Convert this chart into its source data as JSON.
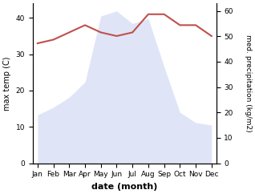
{
  "months": [
    "Jan",
    "Feb",
    "Mar",
    "Apr",
    "May",
    "Jun",
    "Jul",
    "Aug",
    "Sep",
    "Oct",
    "Nov",
    "Dec"
  ],
  "rainfall": [
    19,
    22,
    26,
    32,
    58,
    60,
    55,
    57,
    38,
    20,
    16,
    15
  ],
  "temperature": [
    33,
    34,
    36,
    38,
    36,
    35,
    36,
    41,
    41,
    38,
    38,
    35
  ],
  "temp_color": "#c0504d",
  "rain_fill_color": "#c5d0f0",
  "left_ylabel": "max temp (C)",
  "right_ylabel": "med. precipitation (kg/m2)",
  "xlabel": "date (month)",
  "left_ylim": [
    0,
    44
  ],
  "right_ylim": [
    0,
    63
  ],
  "left_yticks": [
    0,
    10,
    20,
    30,
    40
  ],
  "right_yticks": [
    0,
    10,
    20,
    30,
    40,
    50,
    60
  ],
  "figsize": [
    3.18,
    2.42
  ],
  "dpi": 100
}
